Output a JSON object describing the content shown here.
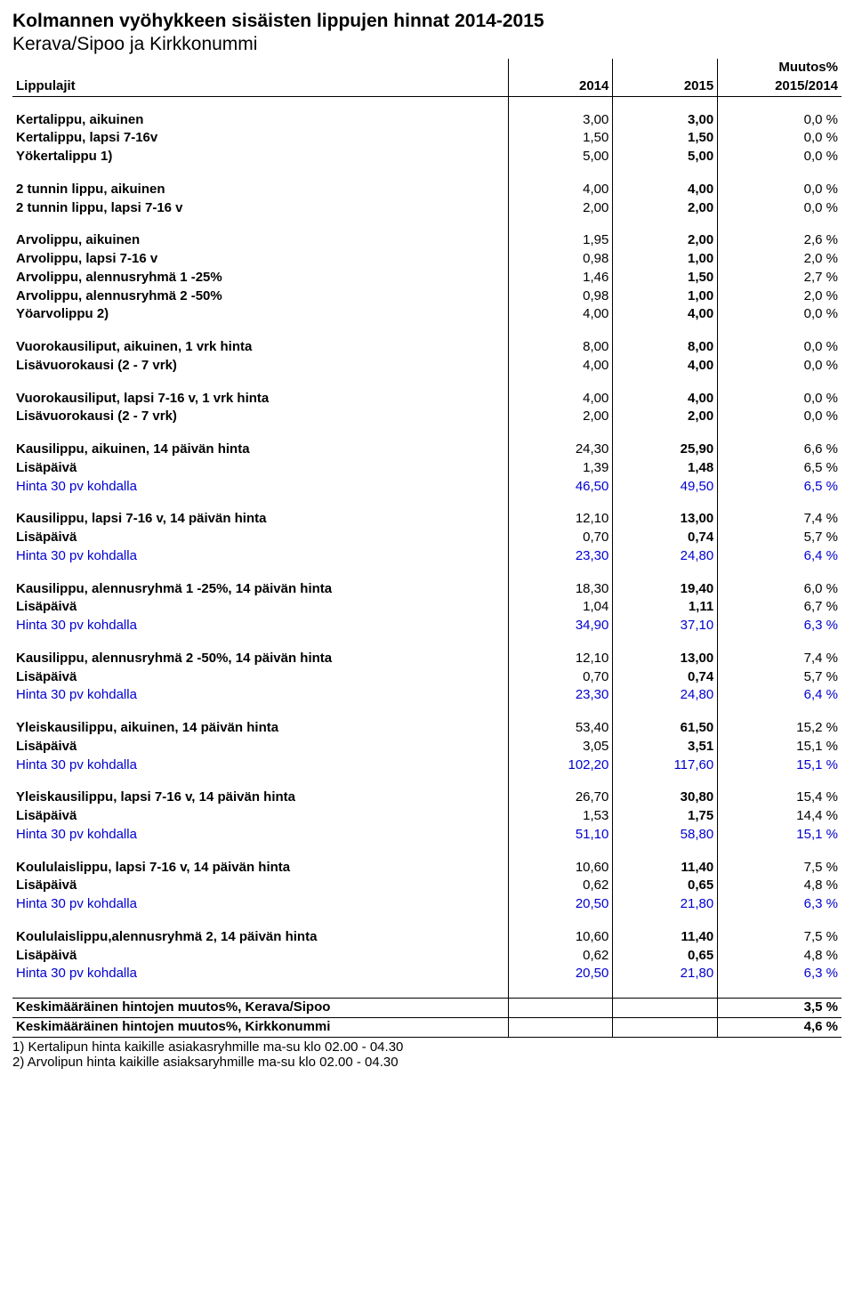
{
  "title_main": "Kolmannen vyöhykkeen sisäisten lippujen hinnat 2014-2015",
  "title_sub": "Kerava/Sipoo ja Kirkkonummi",
  "header": {
    "lippulajit": "Lippulajit",
    "y2014": "2014",
    "y2015": "2015",
    "muutos_top": "Muutos%",
    "muutos_bot": "2015/2014"
  },
  "footnotes": {
    "f1": "1) Kertalipun hinta kaikille asiakasryhmille ma-su klo 02.00 - 04.30",
    "f2": "2) Arvolipun hinta kaikille asiaksaryhmille ma-su klo 02.00 - 04.30"
  },
  "rows": [
    {
      "label": "Kertalippu, aikuinen",
      "v2014": "3,00",
      "v2015": "3,00",
      "pct": "0,0 %",
      "bold": true
    },
    {
      "label": "Kertalippu, lapsi 7-16v",
      "v2014": "1,50",
      "v2015": "1,50",
      "pct": "0,0 %",
      "bold": true
    },
    {
      "label": "Yökertalippu   1)",
      "v2014": "5,00",
      "v2015": "5,00",
      "pct": "0,0 %",
      "bold": true
    },
    {
      "spacer": true
    },
    {
      "label": "2 tunnin lippu, aikuinen",
      "v2014": "4,00",
      "v2015": "4,00",
      "pct": "0,0 %",
      "bold": true
    },
    {
      "label": "2 tunnin lippu, lapsi 7-16 v",
      "v2014": "2,00",
      "v2015": "2,00",
      "pct": "0,0 %",
      "bold": true
    },
    {
      "spacer": true
    },
    {
      "label": "Arvolippu, aikuinen",
      "v2014": "1,95",
      "v2015": "2,00",
      "pct": "2,6 %",
      "bold": true
    },
    {
      "label": "Arvolippu, lapsi 7-16 v",
      "v2014": "0,98",
      "v2015": "1,00",
      "pct": "2,0 %",
      "bold": true
    },
    {
      "label": "Arvolippu, alennusryhmä 1 -25%",
      "v2014": "1,46",
      "v2015": "1,50",
      "pct": "2,7 %",
      "bold": true
    },
    {
      "label": "Arvolippu, alennusryhmä 2 -50%",
      "v2014": "0,98",
      "v2015": "1,00",
      "pct": "2,0 %",
      "bold": true
    },
    {
      "label": "Yöarvolippu   2)",
      "v2014": "4,00",
      "v2015": "4,00",
      "pct": "0,0 %",
      "bold": true
    },
    {
      "spacer": true
    },
    {
      "label": "Vuorokausiliput, aikuinen, 1 vrk hinta",
      "v2014": "8,00",
      "v2015": "8,00",
      "pct": "0,0 %",
      "bold": true
    },
    {
      "label": "Lisävuorokausi (2 - 7 vrk)",
      "v2014": "4,00",
      "v2015": "4,00",
      "pct": "0,0 %",
      "bold": true
    },
    {
      "spacer": true
    },
    {
      "label": "Vuorokausiliput, lapsi 7-16 v, 1 vrk hinta",
      "v2014": "4,00",
      "v2015": "4,00",
      "pct": "0,0 %",
      "bold": true
    },
    {
      "label": "Lisävuorokausi (2 - 7 vrk)",
      "v2014": "2,00",
      "v2015": "2,00",
      "pct": "0,0 %",
      "bold": true
    },
    {
      "spacer": true
    },
    {
      "label": "Kausilippu, aikuinen, 14 päivän hinta",
      "v2014": "24,30",
      "v2015": "25,90",
      "pct": "6,6 %",
      "bold": true
    },
    {
      "label": "Lisäpäivä",
      "v2014": "1,39",
      "v2015": "1,48",
      "pct": "6,5 %",
      "bold": true
    },
    {
      "label": "Hinta 30 pv kohdalla",
      "v2014": "46,50",
      "v2015": "49,50",
      "pct": "6,5 %",
      "blue": true
    },
    {
      "spacer": true
    },
    {
      "label": "Kausilippu, lapsi 7-16 v, 14 päivän hinta",
      "v2014": "12,10",
      "v2015": "13,00",
      "pct": "7,4 %",
      "bold": true
    },
    {
      "label": "Lisäpäivä",
      "v2014": "0,70",
      "v2015": "0,74",
      "pct": "5,7 %",
      "bold": true
    },
    {
      "label": "Hinta 30 pv kohdalla",
      "v2014": "23,30",
      "v2015": "24,80",
      "pct": "6,4 %",
      "blue": true
    },
    {
      "spacer": true
    },
    {
      "label": "Kausilippu, alennusryhmä 1 -25%, 14 päivän hinta",
      "v2014": "18,30",
      "v2015": "19,40",
      "pct": "6,0 %",
      "bold": true
    },
    {
      "label": "Lisäpäivä",
      "v2014": "1,04",
      "v2015": "1,11",
      "pct": "6,7 %",
      "bold": true
    },
    {
      "label": "Hinta 30 pv kohdalla",
      "v2014": "34,90",
      "v2015": "37,10",
      "pct": "6,3 %",
      "blue": true
    },
    {
      "spacer": true
    },
    {
      "label": "Kausilippu, alennusryhmä 2 -50%, 14 päivän hinta",
      "v2014": "12,10",
      "v2015": "13,00",
      "pct": "7,4 %",
      "bold": true
    },
    {
      "label": "Lisäpäivä",
      "v2014": "0,70",
      "v2015": "0,74",
      "pct": "5,7 %",
      "bold": true
    },
    {
      "label": "Hinta 30 pv kohdalla",
      "v2014": "23,30",
      "v2015": "24,80",
      "pct": "6,4 %",
      "blue": true
    },
    {
      "spacer": true
    },
    {
      "label": "Yleiskausilippu, aikuinen, 14 päivän hinta",
      "v2014": "53,40",
      "v2015": "61,50",
      "pct": "15,2 %",
      "bold": true
    },
    {
      "label": "Lisäpäivä",
      "v2014": "3,05",
      "v2015": "3,51",
      "pct": "15,1 %",
      "bold": true
    },
    {
      "label": "Hinta 30 pv kohdalla",
      "v2014": "102,20",
      "v2015": "117,60",
      "pct": "15,1 %",
      "blue": true
    },
    {
      "spacer": true
    },
    {
      "label": "Yleiskausilippu, lapsi 7-16 v, 14 päivän hinta",
      "v2014": "26,70",
      "v2015": "30,80",
      "pct": "15,4 %",
      "bold": true
    },
    {
      "label": "Lisäpäivä",
      "v2014": "1,53",
      "v2015": "1,75",
      "pct": "14,4 %",
      "bold": true
    },
    {
      "label": "Hinta 30 pv kohdalla",
      "v2014": "51,10",
      "v2015": "58,80",
      "pct": "15,1 %",
      "blue": true
    },
    {
      "spacer": true
    },
    {
      "label": "Koululaislippu, lapsi 7-16 v, 14 päivän hinta",
      "v2014": "10,60",
      "v2015": "11,40",
      "pct": "7,5 %",
      "bold": true
    },
    {
      "label": "Lisäpäivä",
      "v2014": "0,62",
      "v2015": "0,65",
      "pct": "4,8 %",
      "bold": true
    },
    {
      "label": "Hinta 30 pv kohdalla",
      "v2014": "20,50",
      "v2015": "21,80",
      "pct": "6,3 %",
      "blue": true
    },
    {
      "spacer": true
    },
    {
      "label": "Koululaislippu,alennusryhmä 2, 14 päivän hinta",
      "v2014": "10,60",
      "v2015": "11,40",
      "pct": "7,5 %",
      "bold": true
    },
    {
      "label": "Lisäpäivä",
      "v2014": "0,62",
      "v2015": "0,65",
      "pct": "4,8 %",
      "bold": true
    },
    {
      "label": "Hinta 30 pv kohdalla",
      "v2014": "20,50",
      "v2015": "21,80",
      "pct": "6,3 %",
      "blue": true
    },
    {
      "spacer": true
    }
  ],
  "summary": [
    {
      "label": "Keskimääräinen hintojen muutos%, Kerava/Sipoo",
      "pct": "3,5 %"
    },
    {
      "label": "Keskimääräinen hintojen muutos%, Kirkkonummi",
      "pct": "4,6 %"
    }
  ]
}
